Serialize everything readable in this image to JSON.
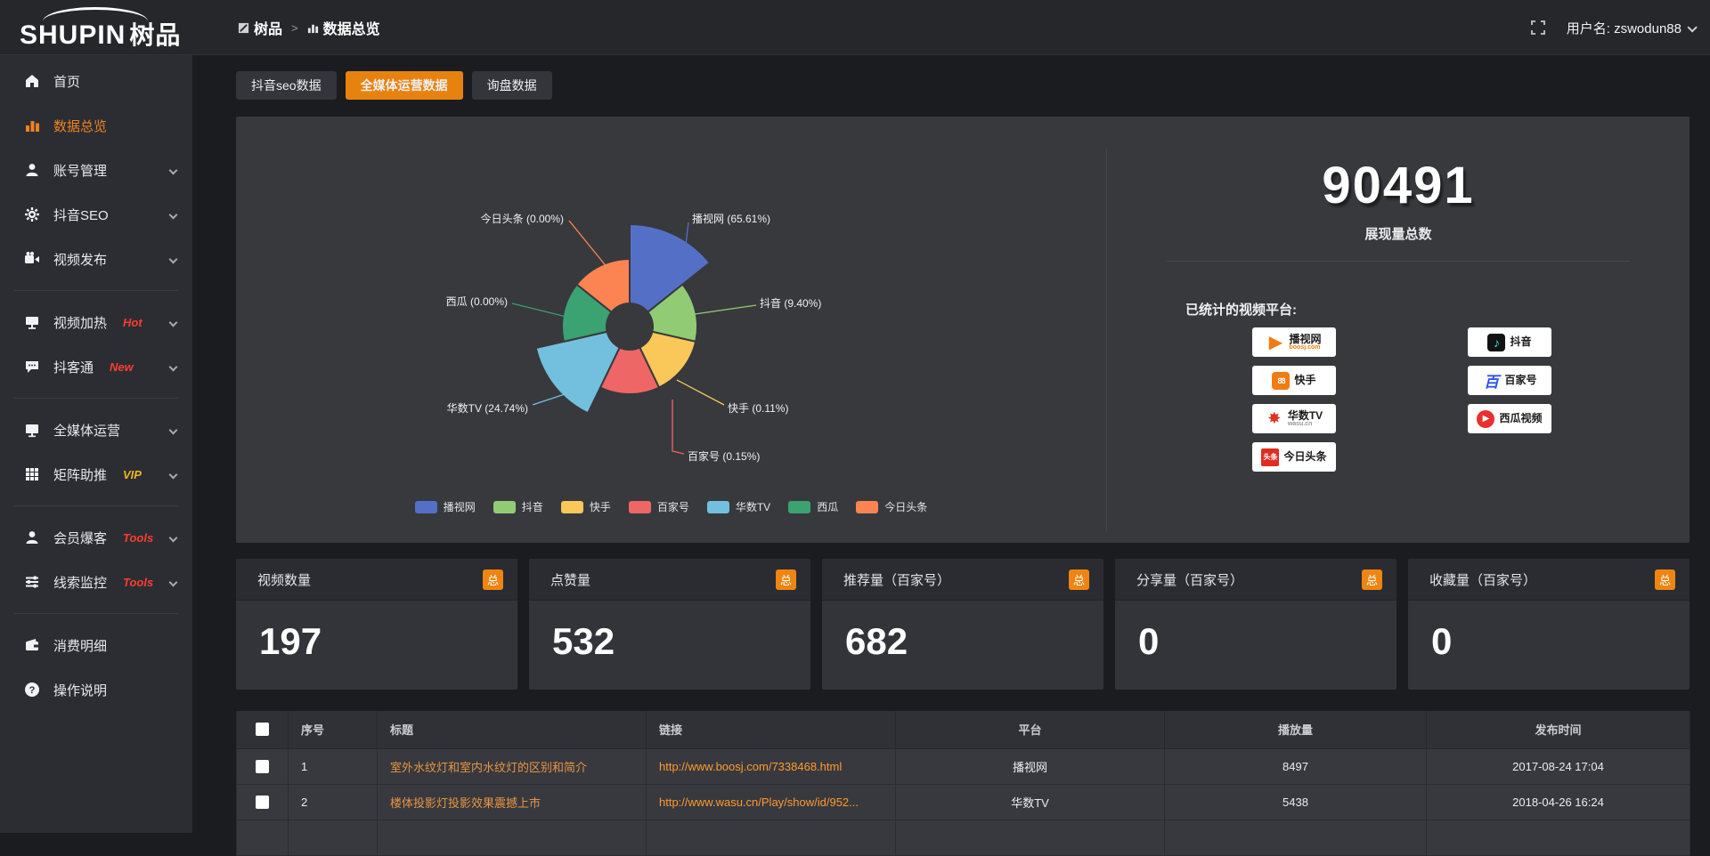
{
  "topbar": {
    "logo_en": "SHUPIN",
    "logo_cn": "树品",
    "breadcrumb": {
      "root": "树品",
      "sep": ">",
      "current": "数据总览"
    },
    "username": "用户名: zswodun88"
  },
  "sidebar": {
    "items": [
      {
        "label": "首页",
        "icon": "home-icon",
        "active": false,
        "chevron": false,
        "tag": null,
        "divider_after": false
      },
      {
        "label": "数据总览",
        "icon": "bar-chart-icon",
        "active": true,
        "chevron": false,
        "tag": null,
        "divider_after": false
      },
      {
        "label": "账号管理",
        "icon": "user-icon",
        "active": false,
        "chevron": true,
        "tag": null,
        "divider_after": false
      },
      {
        "label": "抖音SEO",
        "icon": "gear-icon",
        "active": false,
        "chevron": true,
        "tag": null,
        "divider_after": false
      },
      {
        "label": "视频发布",
        "icon": "video-icon",
        "active": false,
        "chevron": true,
        "tag": null,
        "divider_after": true
      },
      {
        "label": "视频加热",
        "icon": "screen-icon",
        "active": false,
        "chevron": true,
        "tag": "Hot",
        "tag_color": "#ff3c2e",
        "divider_after": false
      },
      {
        "label": "抖客通",
        "icon": "chat-icon",
        "active": false,
        "chevron": true,
        "tag": "New",
        "tag_color": "#ff3c2e",
        "divider_after": true
      },
      {
        "label": "全媒体运营",
        "icon": "monitor-icon",
        "active": false,
        "chevron": true,
        "tag": null,
        "divider_after": false
      },
      {
        "label": "矩阵助推",
        "icon": "grid-icon",
        "active": false,
        "chevron": true,
        "tag": "VIP",
        "tag_color": "#f0b421",
        "divider_after": true
      },
      {
        "label": "会员爆客",
        "icon": "user-icon",
        "active": false,
        "chevron": true,
        "tag": "Tools",
        "tag_color": "#ff3c2e",
        "divider_after": false
      },
      {
        "label": "线索监控",
        "icon": "sliders-icon",
        "active": false,
        "chevron": true,
        "tag": "Tools",
        "tag_color": "#ff3c2e",
        "divider_after": true
      },
      {
        "label": "消费明细",
        "icon": "wallet-icon",
        "active": false,
        "chevron": false,
        "tag": null,
        "divider_after": false
      },
      {
        "label": "操作说明",
        "icon": "question-icon",
        "active": false,
        "chevron": false,
        "tag": null,
        "divider_after": false
      }
    ]
  },
  "tabs": [
    {
      "label": "抖音seo数据",
      "active": false
    },
    {
      "label": "全媒体运营数据",
      "active": true
    },
    {
      "label": "询盘数据",
      "active": false
    }
  ],
  "chart_data": {
    "type": "pie",
    "style": "nightingale-rose",
    "categories": [
      "播视网",
      "抖音",
      "快手",
      "百家号",
      "华数TV",
      "西瓜",
      "今日头条"
    ],
    "values_percent": [
      65.61,
      9.4,
      0.11,
      0.15,
      24.74,
      0.0,
      0.0
    ],
    "colors": [
      "#5470c6",
      "#91cc75",
      "#fac858",
      "#ee6666",
      "#73c0de",
      "#3ba272",
      "#fc8452"
    ],
    "label_format": "{name} ({percent}%)",
    "legend": [
      "播视网",
      "抖音",
      "快手",
      "百家号",
      "华数TV",
      "西瓜",
      "今日头条"
    ],
    "legend_position": "bottom",
    "grid": false
  },
  "summary": {
    "total_value": "90491",
    "total_label": "展现量总数",
    "platforms_label": "已统计的视频平台:",
    "platforms_left": [
      {
        "name": "播视网",
        "sub": "boosj.com",
        "logo": "boosj",
        "glyph": "▶"
      },
      {
        "name": "快手",
        "sub": "",
        "logo": "kuaishou",
        "glyph": "88"
      },
      {
        "name": "华数TV",
        "sub": "wasu.cn",
        "logo": "wasu",
        "glyph": "✸"
      },
      {
        "name": "今日头条",
        "sub": "",
        "logo": "toutiao",
        "glyph": "头条"
      }
    ],
    "platforms_right": [
      {
        "name": "抖音",
        "sub": "",
        "logo": "douyin",
        "glyph": "♪"
      },
      {
        "name": "百家号",
        "sub": "",
        "logo": "baijia",
        "glyph": "百"
      },
      {
        "name": "西瓜视频",
        "sub": "",
        "logo": "xigua",
        "glyph": "▶"
      }
    ]
  },
  "stat_cards": [
    {
      "title": "视频数量",
      "badge": "总",
      "value": "197"
    },
    {
      "title": "点赞量",
      "badge": "总",
      "value": "532"
    },
    {
      "title": "推荐量（百家号）",
      "badge": "总",
      "value": "682"
    },
    {
      "title": "分享量（百家号）",
      "badge": "总",
      "value": "0"
    },
    {
      "title": "收藏量（百家号）",
      "badge": "总",
      "value": "0"
    }
  ],
  "table": {
    "headers": [
      "序号",
      "标题",
      "链接",
      "平台",
      "播放量",
      "发布时间"
    ],
    "rows": [
      {
        "no": "1",
        "title": "室外水纹灯和室内水纹灯的区别和简介",
        "link": "http://www.boosj.com/7338468.html",
        "platform": "播视网",
        "plays": "8497",
        "time": "2017-08-24 17:04"
      },
      {
        "no": "2",
        "title": "楼体投影灯投影效果震撼上市",
        "link": "http://www.wasu.cn/Play/show/id/952...",
        "platform": "华数TV",
        "plays": "5438",
        "time": "2018-04-26 16:24"
      },
      {
        "no": "",
        "title": "",
        "link": "",
        "platform": "",
        "plays": "",
        "time": ""
      }
    ]
  }
}
